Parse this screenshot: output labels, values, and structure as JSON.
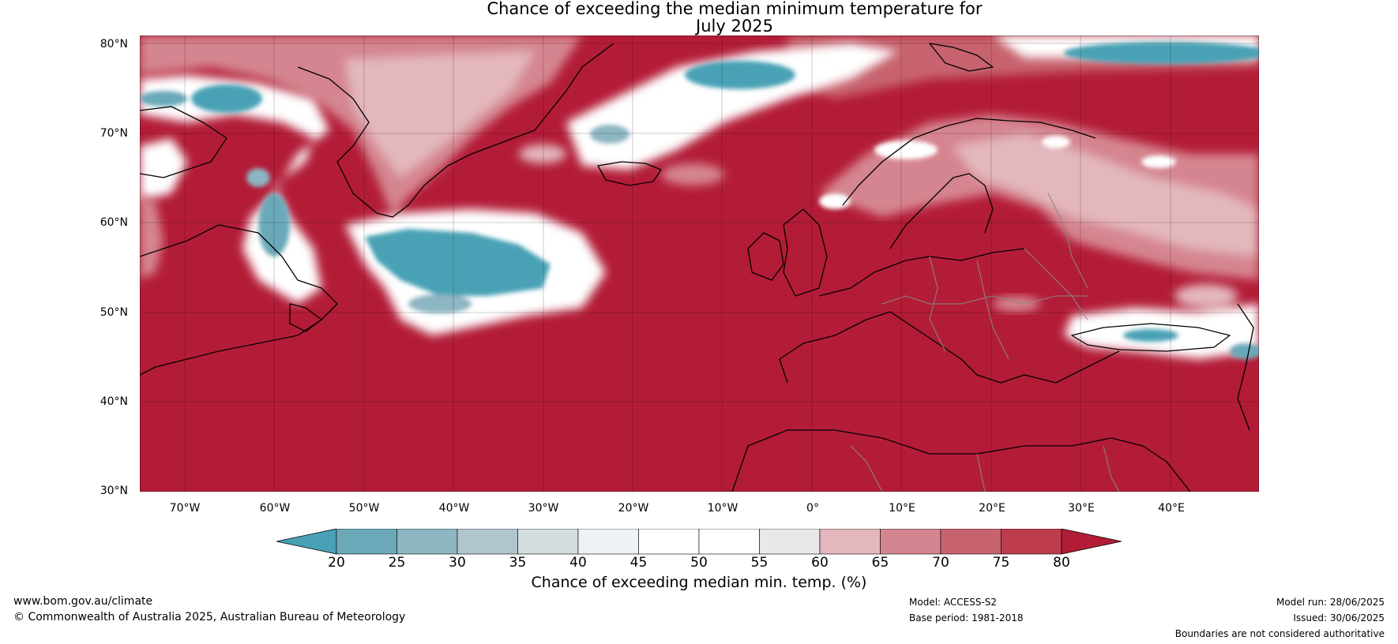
{
  "title": {
    "line1": "Chance of exceeding the median minimum temperature for",
    "line2": "July 2025"
  },
  "map": {
    "lat_labels": [
      "80°N",
      "70°N",
      "60°N",
      "50°N",
      "40°N",
      "30°N"
    ],
    "lon_labels": [
      "70°W",
      "60°W",
      "50°W",
      "40°W",
      "30°W",
      "20°W",
      "10°W",
      "0°",
      "10°E",
      "20°E",
      "30°E",
      "40°E"
    ],
    "extent": {
      "lon_min": -75,
      "lon_max": 50,
      "lat_min": 30,
      "lat_max": 81
    },
    "background_color": "#b31c37"
  },
  "colorbar": {
    "ticks": [
      "20",
      "25",
      "30",
      "35",
      "40",
      "45",
      "50",
      "55",
      "60",
      "65",
      "70",
      "75",
      "80"
    ],
    "colors": [
      "#48a1b5",
      "#6ba9b9",
      "#8cb6c2",
      "#b0c6cc",
      "#d3dcde",
      "#edf3f4",
      "#ffffff",
      "#ffffff",
      "#e8e8e8",
      "#e3b7bd",
      "#d5858f",
      "#c7636e",
      "#bd3c4c",
      "#b31c37"
    ],
    "label": "Chance of exceeding median min. temp. (%)"
  },
  "footer": {
    "website": "www.bom.gov.au/climate",
    "copyright": "© Commonwealth of Australia 2025, Australian Bureau of Meteorology",
    "model": "Model: ACCESS-S2",
    "base_period": "Base period: 1981-2018",
    "model_run": "Model run: 28/06/2025",
    "issued": "Issued: 30/06/2025",
    "disclaimer": "Boundaries are not considered authoritative"
  }
}
